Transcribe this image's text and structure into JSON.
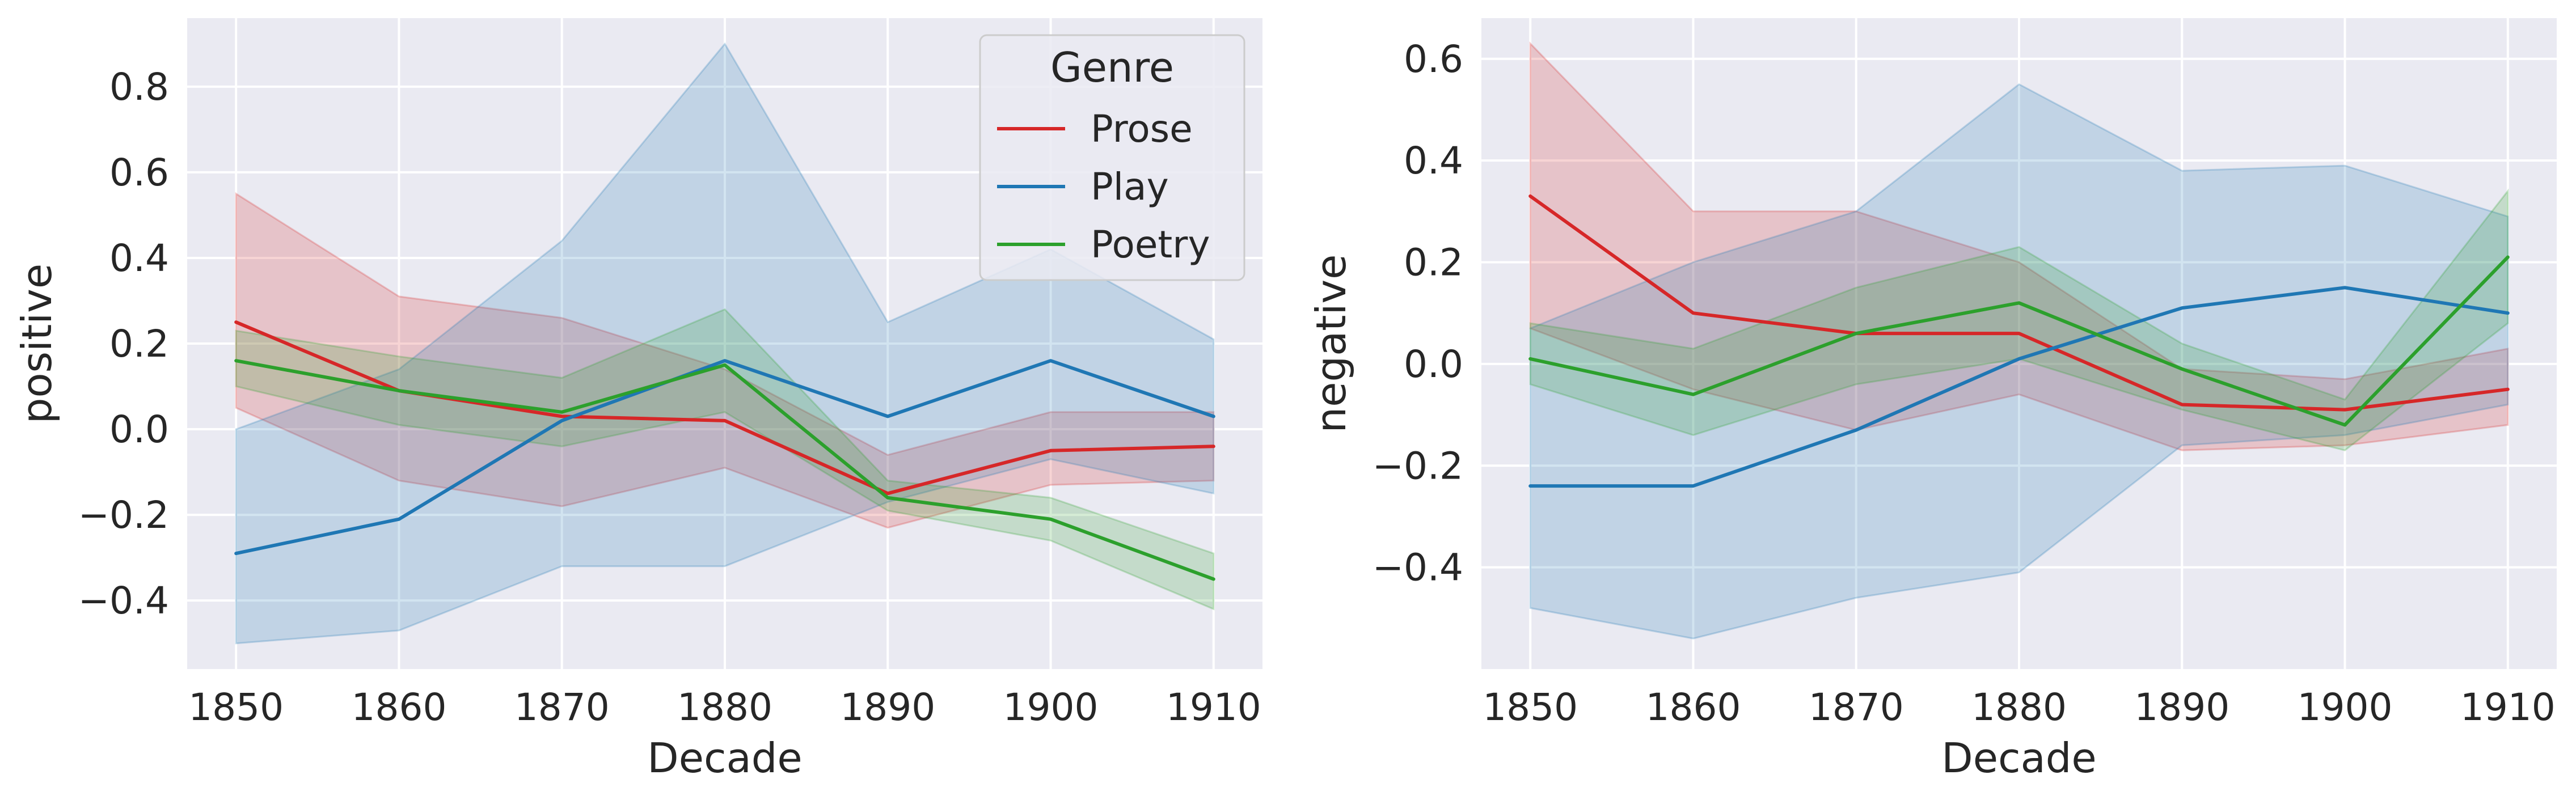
{
  "chart_data": [
    {
      "type": "line",
      "xlabel": "Decade",
      "ylabel": "positive",
      "x": [
        1850,
        1860,
        1870,
        1880,
        1890,
        1900,
        1910
      ],
      "xlim": [
        1847,
        1913
      ],
      "ylim": [
        -0.56,
        0.96
      ],
      "xticks": [
        "1850",
        "1860",
        "1870",
        "1880",
        "1890",
        "1900",
        "1910"
      ],
      "yticks": [
        -0.4,
        -0.2,
        0.0,
        0.2,
        0.4,
        0.6,
        0.8
      ],
      "ytick_labels": [
        "−0.4",
        "−0.2",
        "0.0",
        "0.2",
        "0.4",
        "0.6",
        "0.8"
      ],
      "grid": true,
      "legend": {
        "title": "Genre",
        "position": "top-right"
      },
      "series": [
        {
          "name": "Prose",
          "color": "#d62728",
          "values": [
            0.25,
            0.09,
            0.03,
            0.02,
            -0.15,
            -0.05,
            -0.04
          ],
          "ci_low": [
            0.05,
            -0.12,
            -0.18,
            -0.09,
            -0.23,
            -0.13,
            -0.12
          ],
          "ci_high": [
            0.55,
            0.31,
            0.26,
            0.14,
            -0.06,
            0.04,
            0.04
          ]
        },
        {
          "name": "Play",
          "color": "#1f77b4",
          "values": [
            -0.29,
            -0.21,
            0.02,
            0.16,
            0.03,
            0.16,
            0.03
          ],
          "ci_low": [
            -0.5,
            -0.47,
            -0.32,
            -0.32,
            -0.17,
            -0.07,
            -0.15
          ],
          "ci_high": [
            0.0,
            0.14,
            0.44,
            0.9,
            0.25,
            0.42,
            0.21
          ]
        },
        {
          "name": "Poetry",
          "color": "#2ca02c",
          "values": [
            0.16,
            0.09,
            0.04,
            0.15,
            -0.16,
            -0.21,
            -0.35
          ],
          "ci_low": [
            0.1,
            0.01,
            -0.04,
            0.04,
            -0.19,
            -0.26,
            -0.42
          ],
          "ci_high": [
            0.23,
            0.17,
            0.12,
            0.28,
            -0.12,
            -0.16,
            -0.29
          ]
        }
      ]
    },
    {
      "type": "line",
      "xlabel": "Decade",
      "ylabel": "negative",
      "x": [
        1850,
        1860,
        1870,
        1880,
        1890,
        1900,
        1910
      ],
      "xlim": [
        1847,
        1913
      ],
      "ylim": [
        -0.6,
        0.68
      ],
      "xticks": [
        "1850",
        "1860",
        "1870",
        "1880",
        "1890",
        "1900",
        "1910"
      ],
      "yticks": [
        -0.4,
        -0.2,
        0.0,
        0.2,
        0.4,
        0.6
      ],
      "ytick_labels": [
        "−0.4",
        "−0.2",
        "0.0",
        "0.2",
        "0.4",
        "0.6"
      ],
      "grid": true,
      "series": [
        {
          "name": "Prose",
          "color": "#d62728",
          "values": [
            0.33,
            0.1,
            0.06,
            0.06,
            -0.08,
            -0.09,
            -0.05
          ],
          "ci_low": [
            0.07,
            -0.05,
            -0.13,
            -0.06,
            -0.17,
            -0.16,
            -0.12
          ],
          "ci_high": [
            0.63,
            0.3,
            0.3,
            0.2,
            -0.01,
            -0.03,
            0.03
          ]
        },
        {
          "name": "Play",
          "color": "#1f77b4",
          "values": [
            -0.24,
            -0.24,
            -0.13,
            0.01,
            0.11,
            0.15,
            0.1
          ],
          "ci_low": [
            -0.48,
            -0.54,
            -0.46,
            -0.41,
            -0.16,
            -0.14,
            -0.08
          ],
          "ci_high": [
            0.07,
            0.2,
            0.3,
            0.55,
            0.38,
            0.39,
            0.29
          ]
        },
        {
          "name": "Poetry",
          "color": "#2ca02c",
          "values": [
            0.01,
            -0.06,
            0.06,
            0.12,
            -0.01,
            -0.12,
            0.21
          ],
          "ci_low": [
            -0.04,
            -0.14,
            -0.04,
            0.01,
            -0.09,
            -0.17,
            0.08
          ],
          "ci_high": [
            0.08,
            0.03,
            0.15,
            0.23,
            0.04,
            -0.07,
            0.34
          ]
        }
      ]
    }
  ]
}
